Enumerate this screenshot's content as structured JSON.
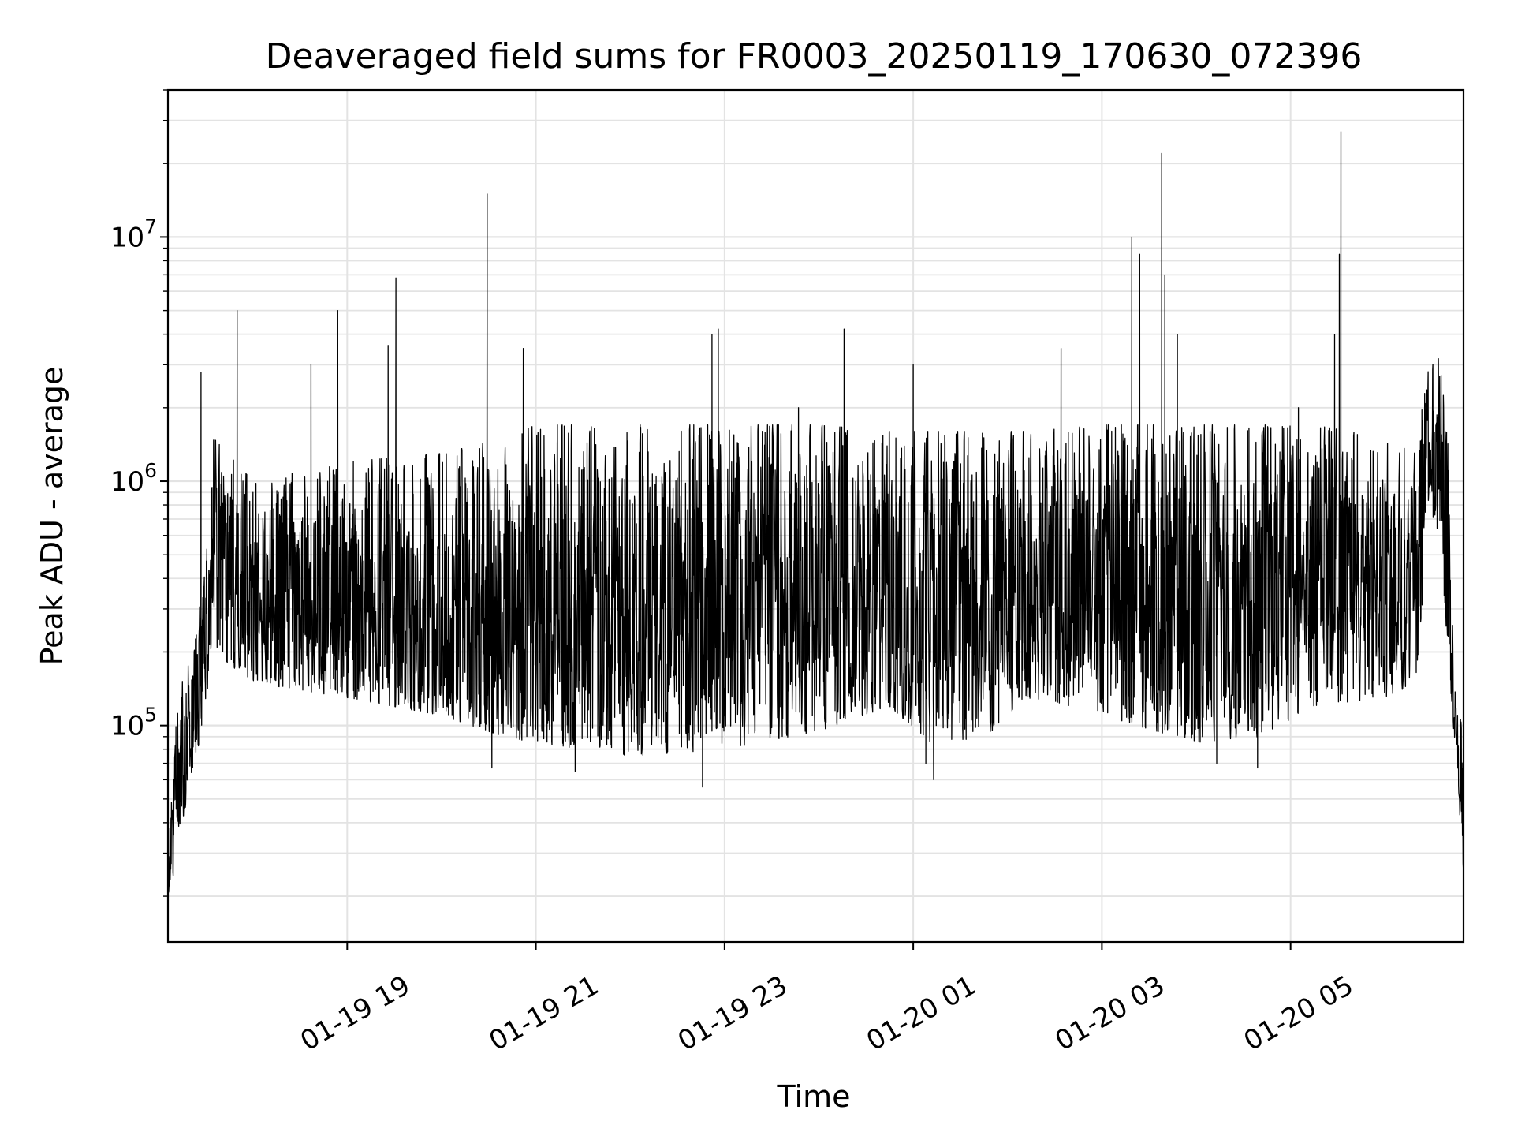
{
  "chart_data": {
    "type": "line",
    "title": "Deaveraged field sums for FR0003_20250119_170630_072396",
    "xlabel": "Time",
    "ylabel": "Peak ADU - average",
    "yscale": "log",
    "xlim": [
      "2025-01-19 17:06",
      "2025-01-20 06:50"
    ],
    "ylim": [
      13000,
      40000000
    ],
    "grid": true,
    "line_color": "#000000",
    "x_ticks": [
      {
        "t": "2025-01-19 19:00",
        "label": "01-19 19"
      },
      {
        "t": "2025-01-19 21:00",
        "label": "01-19 21"
      },
      {
        "t": "2025-01-19 23:00",
        "label": "01-19 23"
      },
      {
        "t": "2025-01-20 01:00",
        "label": "01-20 01"
      },
      {
        "t": "2025-01-20 03:00",
        "label": "01-20 03"
      },
      {
        "t": "2025-01-20 05:00",
        "label": "01-20 05"
      }
    ],
    "y_ticks": [
      {
        "value": 100000,
        "base": "10",
        "exp": "5"
      },
      {
        "value": 1000000,
        "base": "10",
        "exp": "6"
      },
      {
        "value": 10000000,
        "base": "10",
        "exp": "7"
      }
    ],
    "envelope": [
      {
        "t": "2025-01-19 17:06",
        "low": 18000,
        "high": 60000
      },
      {
        "t": "2025-01-19 17:15",
        "low": 40000,
        "high": 150000
      },
      {
        "t": "2025-01-19 17:25",
        "low": 80000,
        "high": 250000
      },
      {
        "t": "2025-01-19 17:35",
        "low": 200000,
        "high": 1500000
      },
      {
        "t": "2025-01-19 18:00",
        "low": 150000,
        "high": 1000000
      },
      {
        "t": "2025-01-19 19:00",
        "low": 130000,
        "high": 1200000
      },
      {
        "t": "2025-01-19 20:00",
        "low": 110000,
        "high": 1300000
      },
      {
        "t": "2025-01-19 20:40",
        "low": 90000,
        "high": 1500000
      },
      {
        "t": "2025-01-19 21:00",
        "low": 85000,
        "high": 1700000
      },
      {
        "t": "2025-01-19 22:00",
        "low": 75000,
        "high": 1700000
      },
      {
        "t": "2025-01-19 23:00",
        "low": 80000,
        "high": 1700000
      },
      {
        "t": "2025-01-20 00:00",
        "low": 95000,
        "high": 1700000
      },
      {
        "t": "2025-01-20 00:45",
        "low": 120000,
        "high": 1600000
      },
      {
        "t": "2025-01-20 01:15",
        "low": 80000,
        "high": 1600000
      },
      {
        "t": "2025-01-20 01:50",
        "low": 95000,
        "high": 1600000
      },
      {
        "t": "2025-01-20 02:15",
        "low": 130000,
        "high": 1600000
      },
      {
        "t": "2025-01-20 03:00",
        "low": 110000,
        "high": 1700000
      },
      {
        "t": "2025-01-20 04:00",
        "low": 85000,
        "high": 1700000
      },
      {
        "t": "2025-01-20 04:40",
        "low": 90000,
        "high": 1700000
      },
      {
        "t": "2025-01-20 05:15",
        "low": 120000,
        "high": 1700000
      },
      {
        "t": "2025-01-20 06:00",
        "low": 130000,
        "high": 1500000
      },
      {
        "t": "2025-01-20 06:20",
        "low": 150000,
        "high": 1300000
      },
      {
        "t": "2025-01-20 06:27",
        "low": 600000,
        "high": 3000000
      },
      {
        "t": "2025-01-20 06:35",
        "low": 500000,
        "high": 3200000
      },
      {
        "t": "2025-01-20 06:40",
        "low": 200000,
        "high": 1500000
      },
      {
        "t": "2025-01-20 06:45",
        "low": 70000,
        "high": 120000
      },
      {
        "t": "2025-01-20 06:50",
        "low": 25000,
        "high": 110000
      }
    ],
    "spikes": [
      {
        "t": "2025-01-19 17:27",
        "value": 2800000
      },
      {
        "t": "2025-01-19 17:50",
        "value": 5000000
      },
      {
        "t": "2025-01-19 18:37",
        "value": 3000000
      },
      {
        "t": "2025-01-19 18:54",
        "value": 5000000
      },
      {
        "t": "2025-01-19 19:26",
        "value": 3600000
      },
      {
        "t": "2025-01-19 19:31",
        "value": 6800000
      },
      {
        "t": "2025-01-19 20:29",
        "value": 15000000
      },
      {
        "t": "2025-01-19 20:52",
        "value": 3500000
      },
      {
        "t": "2025-01-19 22:52",
        "value": 4000000
      },
      {
        "t": "2025-01-19 22:56",
        "value": 4200000
      },
      {
        "t": "2025-01-19 23:47",
        "value": 2000000
      },
      {
        "t": "2025-01-20 00:16",
        "value": 4200000
      },
      {
        "t": "2025-01-20 01:00",
        "value": 3000000
      },
      {
        "t": "2025-01-20 02:34",
        "value": 3500000
      },
      {
        "t": "2025-01-20 03:19",
        "value": 10000000
      },
      {
        "t": "2025-01-20 03:24",
        "value": 8500000
      },
      {
        "t": "2025-01-20 03:38",
        "value": 22000000
      },
      {
        "t": "2025-01-20 03:40",
        "value": 7000000
      },
      {
        "t": "2025-01-20 03:48",
        "value": 4000000
      },
      {
        "t": "2025-01-20 05:05",
        "value": 2000000
      },
      {
        "t": "2025-01-20 05:28",
        "value": 4000000
      },
      {
        "t": "2025-01-20 05:31",
        "value": 8500000
      },
      {
        "t": "2025-01-20 05:32",
        "value": 27000000
      }
    ],
    "dips": [
      {
        "t": "2025-01-19 20:32",
        "value": 67000
      },
      {
        "t": "2025-01-19 21:25",
        "value": 65000
      },
      {
        "t": "2025-01-19 22:46",
        "value": 56000
      },
      {
        "t": "2025-01-20 01:13",
        "value": 60000
      },
      {
        "t": "2025-01-20 01:08",
        "value": 70000
      },
      {
        "t": "2025-01-20 04:13",
        "value": 70000
      },
      {
        "t": "2025-01-20 04:39",
        "value": 67000
      },
      {
        "t": "2025-01-20 06:49",
        "value": 40000
      }
    ]
  }
}
